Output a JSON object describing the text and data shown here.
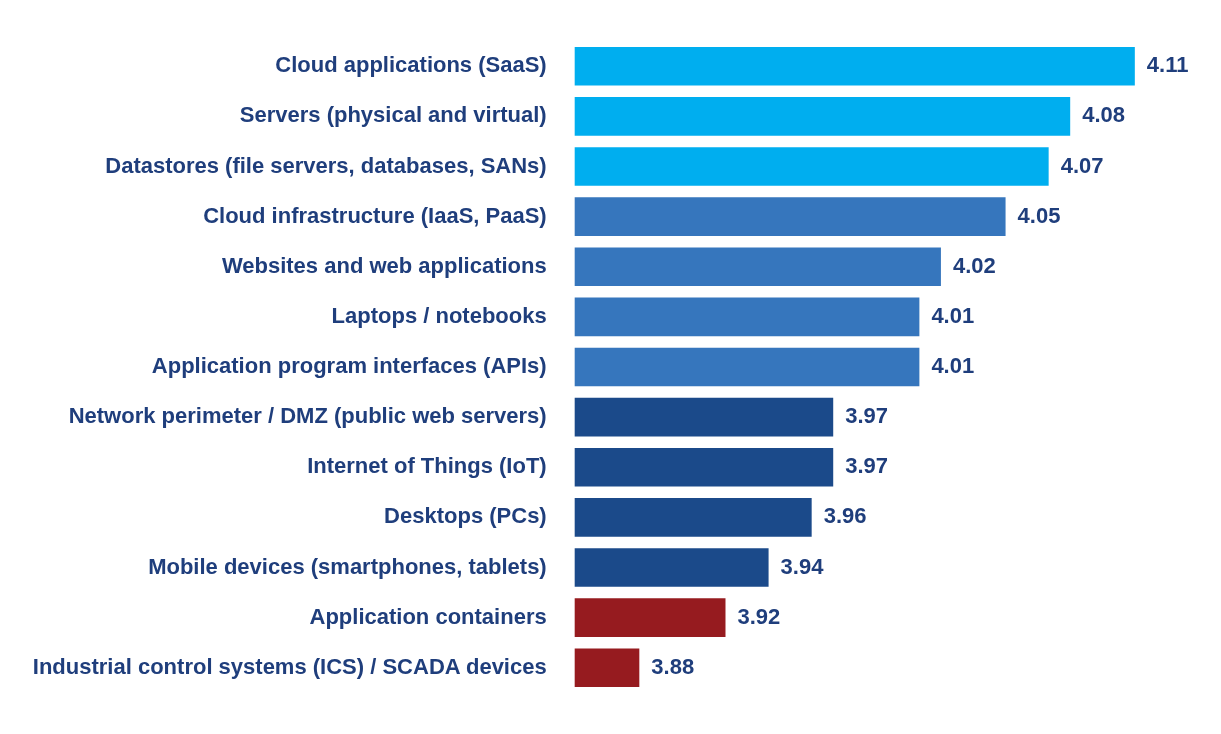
{
  "chart_data": {
    "type": "bar",
    "orientation": "horizontal",
    "categories": [
      "Cloud applications (SaaS)",
      "Servers (physical and virtual)",
      "Datastores (file servers, databases, SANs)",
      "Cloud infrastructure (IaaS, PaaS)",
      "Websites and web applications",
      "Laptops / notebooks",
      "Application program interfaces (APIs)",
      "Network perimeter / DMZ (public web servers)",
      "Internet of Things (IoT)",
      "Desktops (PCs)",
      "Mobile devices (smartphones, tablets)",
      "Application containers",
      "Industrial control systems (ICS) / SCADA devices"
    ],
    "values": [
      4.11,
      4.08,
      4.07,
      4.05,
      4.02,
      4.01,
      4.01,
      3.97,
      3.97,
      3.96,
      3.94,
      3.92,
      3.88
    ],
    "colors": [
      "#00aeef",
      "#00aeef",
      "#00aeef",
      "#3676bd",
      "#3676bd",
      "#3676bd",
      "#3676bd",
      "#1b4a8a",
      "#1b4a8a",
      "#1b4a8a",
      "#1b4a8a",
      "#961b1f",
      "#961b1f"
    ],
    "tick_labels": "y",
    "grid": false,
    "legend": false,
    "data_labels": true
  }
}
